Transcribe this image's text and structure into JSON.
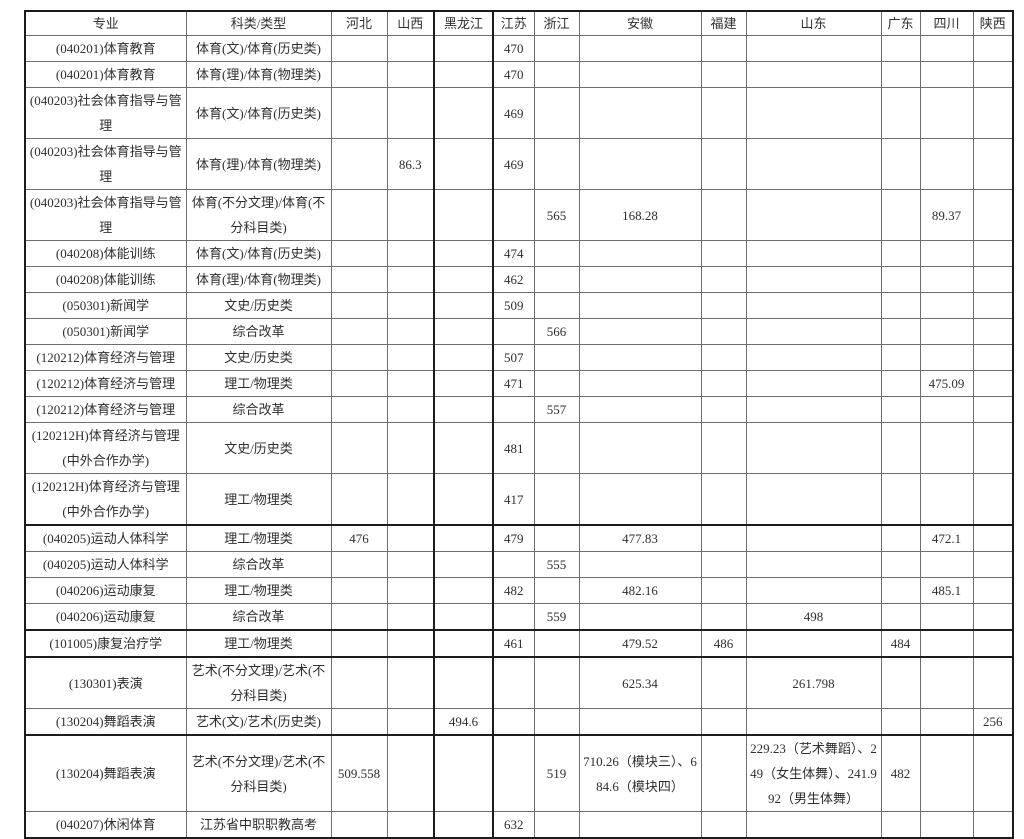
{
  "table": {
    "columns": [
      "专业",
      "科类/类型",
      "河北",
      "山西",
      "黑龙江",
      "江苏",
      "浙江",
      "安徽",
      "福建",
      "山东",
      "广东",
      "四川",
      "陕西"
    ],
    "rows": [
      [
        "(040201)体育教育",
        "体育(文)/体育(历史类)",
        "",
        "",
        "",
        "470",
        "",
        "",
        "",
        "",
        "",
        "",
        ""
      ],
      [
        "(040201)体育教育",
        "体育(理)/体育(物理类)",
        "",
        "",
        "",
        "470",
        "",
        "",
        "",
        "",
        "",
        "",
        ""
      ],
      [
        "(040203)社会体育指导与管理",
        "体育(文)/体育(历史类)",
        "",
        "",
        "",
        "469",
        "",
        "",
        "",
        "",
        "",
        "",
        ""
      ],
      [
        "(040203)社会体育指导与管理",
        "体育(理)/体育(物理类)",
        "",
        "86.3",
        "",
        "469",
        "",
        "",
        "",
        "",
        "",
        "",
        ""
      ],
      [
        "(040203)社会体育指导与管理",
        "体育(不分文理)/体育(不分科目类)",
        "",
        "",
        "",
        "",
        "565",
        "168.28",
        "",
        "",
        "",
        "89.37",
        ""
      ],
      [
        "(040208)体能训练",
        "体育(文)/体育(历史类)",
        "",
        "",
        "",
        "474",
        "",
        "",
        "",
        "",
        "",
        "",
        ""
      ],
      [
        "(040208)体能训练",
        "体育(理)/体育(物理类)",
        "",
        "",
        "",
        "462",
        "",
        "",
        "",
        "",
        "",
        "",
        ""
      ],
      [
        "(050301)新闻学",
        "文史/历史类",
        "",
        "",
        "",
        "509",
        "",
        "",
        "",
        "",
        "",
        "",
        ""
      ],
      [
        "(050301)新闻学",
        "综合改革",
        "",
        "",
        "",
        "",
        "566",
        "",
        "",
        "",
        "",
        "",
        ""
      ],
      [
        "(120212)体育经济与管理",
        "文史/历史类",
        "",
        "",
        "",
        "507",
        "",
        "",
        "",
        "",
        "",
        "",
        ""
      ],
      [
        "(120212)体育经济与管理",
        "理工/物理类",
        "",
        "",
        "",
        "471",
        "",
        "",
        "",
        "",
        "",
        "475.09",
        ""
      ],
      [
        "(120212)体育经济与管理",
        "综合改革",
        "",
        "",
        "",
        "",
        "557",
        "",
        "",
        "",
        "",
        "",
        ""
      ],
      [
        "(120212H)体育经济与管理(中外合作办学)",
        "文史/历史类",
        "",
        "",
        "",
        "481",
        "",
        "",
        "",
        "",
        "",
        "",
        ""
      ],
      [
        "(120212H)体育经济与管理(中外合作办学)",
        "理工/物理类",
        "",
        "",
        "",
        "417",
        "",
        "",
        "",
        "",
        "",
        "",
        ""
      ],
      [
        "(040205)运动人体科学",
        "理工/物理类",
        "476",
        "",
        "",
        "479",
        "",
        "477.83",
        "",
        "",
        "",
        "472.1",
        ""
      ],
      [
        "(040205)运动人体科学",
        "综合改革",
        "",
        "",
        "",
        "",
        "555",
        "",
        "",
        "",
        "",
        "",
        ""
      ],
      [
        "(040206)运动康复",
        "理工/物理类",
        "",
        "",
        "",
        "482",
        "",
        "482.16",
        "",
        "",
        "",
        "485.1",
        ""
      ],
      [
        "(040206)运动康复",
        "综合改革",
        "",
        "",
        "",
        "",
        "559",
        "",
        "",
        "498",
        "",
        "",
        ""
      ],
      [
        "(101005)康复治疗学",
        "理工/物理类",
        "",
        "",
        "",
        "461",
        "",
        "479.52",
        "486",
        "",
        "484",
        "",
        ""
      ],
      [
        "(130301)表演",
        "艺术(不分文理)/艺术(不分科目类)",
        "",
        "",
        "",
        "",
        "",
        "625.34",
        "",
        "261.798",
        "",
        "",
        ""
      ],
      [
        "(130204)舞蹈表演",
        "艺术(文)/艺术(历史类)",
        "",
        "",
        "494.6",
        "",
        "",
        "",
        "",
        "",
        "",
        "",
        "256"
      ],
      [
        "(130204)舞蹈表演",
        "艺术(不分文理)/艺术(不分科目类)",
        "509.558",
        "",
        "",
        "",
        "519",
        "710.26（模块三）、684.6（模块四）",
        "",
        "229.23（艺术舞蹈）、249（女生体舞）、241.992（男生体舞）",
        "482",
        "",
        ""
      ],
      [
        "(040207)休闲体育",
        "江苏省中职职教高考",
        "",
        "",
        "",
        "632",
        "",
        "",
        "",
        "",
        "",
        "",
        ""
      ]
    ]
  }
}
